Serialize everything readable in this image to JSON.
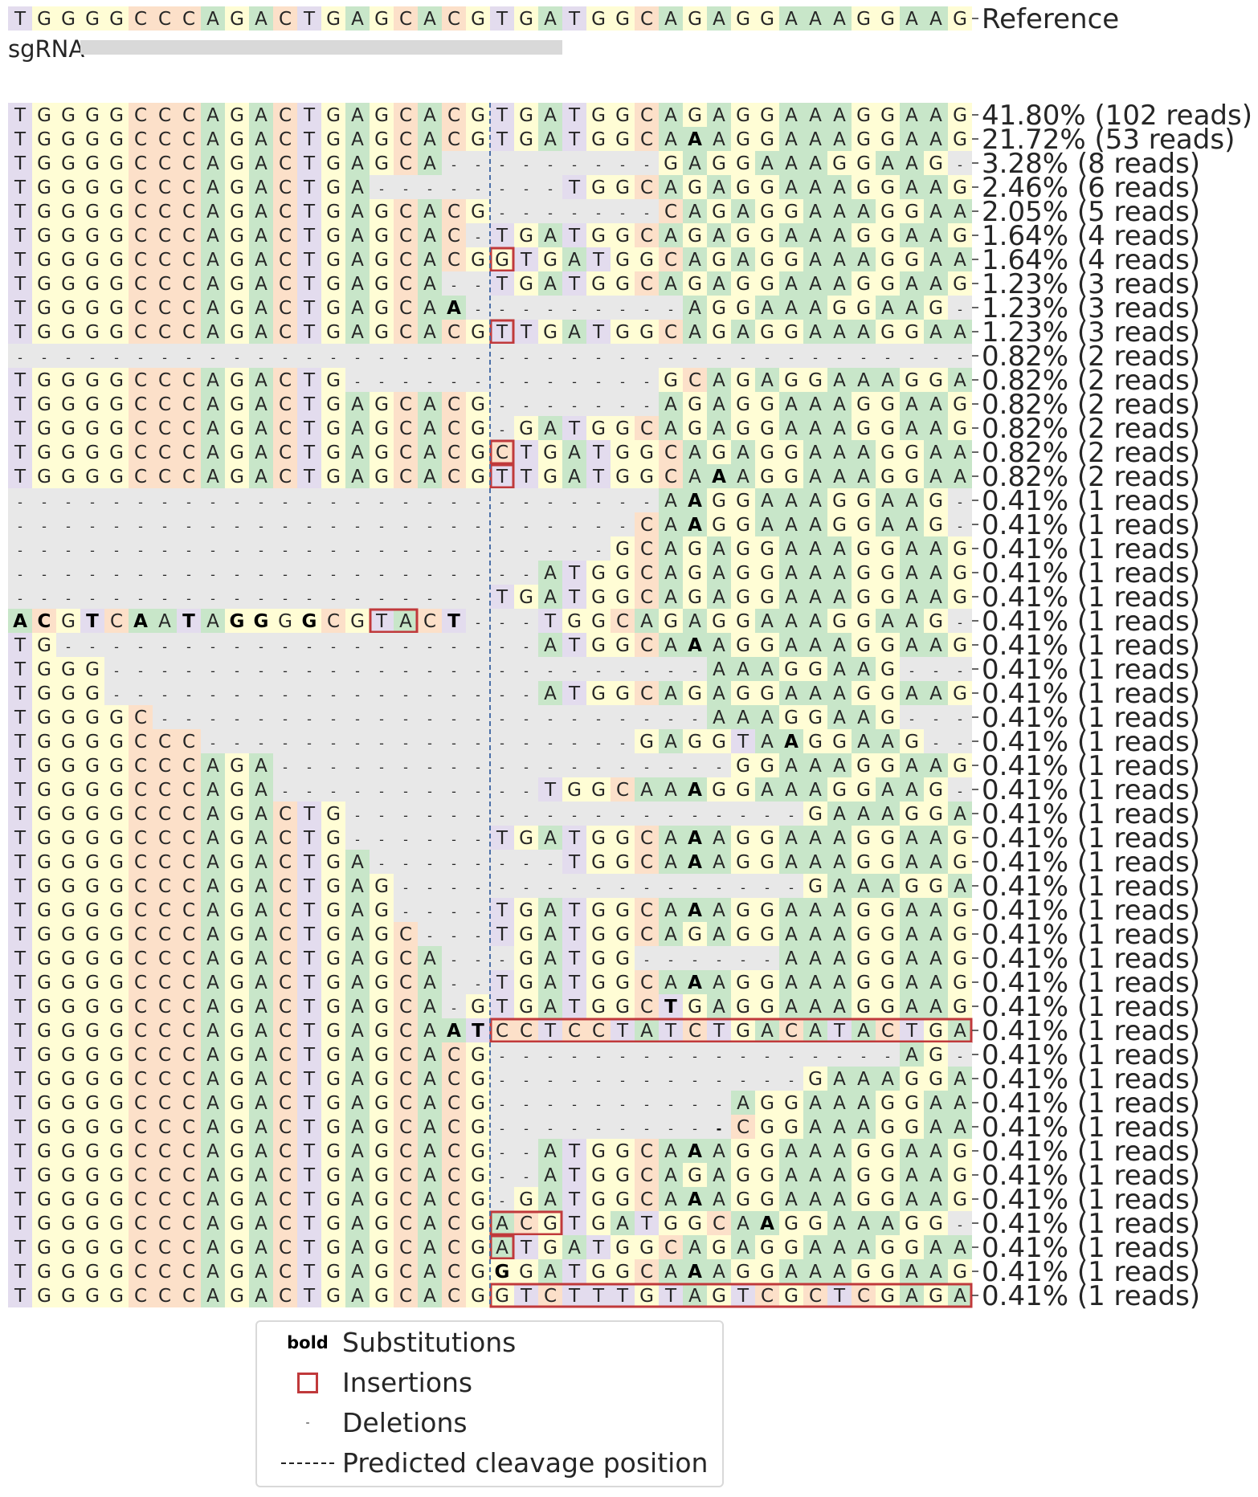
{
  "reference": {
    "sequence": "TGGGGCCCAGACTGAGCACGTGATGGCAGAGGAAAGGAAG",
    "label": "Reference"
  },
  "sgrna": {
    "label": "sgRNA",
    "start": 3,
    "end": 23
  },
  "cleavage_after_column": 20,
  "colors": {
    "A": "#c8e6c9",
    "C": "#fce0c9",
    "G": "#fffdd5",
    "T": "#e3dcee",
    "deletion": "#e8e8e8",
    "insertion_box": "#c0393b",
    "cut_line": "#4a6fa8",
    "text": "#262626",
    "sgrna_bar": "#d9d9d9"
  },
  "rows": [
    {
      "seq": "TGGGGCCCAGACTGAGCACGTGATGGCAGAGGAAAGGAAG",
      "sub": [],
      "ins": [],
      "label": "41.80% (102 reads)"
    },
    {
      "seq": "TGGGGCCCAGACTGAGCACGTGATGGCAAAGGAAAGGAAG",
      "sub": [
        28
      ],
      "ins": [],
      "label": "21.72% (53 reads)"
    },
    {
      "seq": "TGGGGCCCAGACTGAGCA---------GAGGAAAGGAAG",
      "sub": [],
      "ins": [],
      "label": "3.28% (8 reads)"
    },
    {
      "seq": "TGGGGCCCAGACTGA--------TGGCAGAGGAAAGGAAG",
      "sub": [],
      "ins": [],
      "label": "2.46% (6 reads)"
    },
    {
      "seq": "TGGGGCCCAGACTGAGCACG-------CAGAGGAAAGGAAG",
      "sub": [],
      "ins": [],
      "label": "2.05% (5 reads)"
    },
    {
      "seq": "TGGGGCCCAGACTGAGCAC-TGATGGCAGAGGAAAGGAAG",
      "sub": [],
      "ins": [],
      "label": "1.64% (4 reads)"
    },
    {
      "seq": "TGGGGCCCAGACTGAGCACGGTGATGGCAGAGGAAAGGAA",
      "sub": [],
      "ins": [
        [
          20,
          20
        ]
      ],
      "label": "1.64% (4 reads)"
    },
    {
      "seq": "TGGGGCCCAGACTGAGCA--TGATGGCAGAGGAAAGGAAG",
      "sub": [],
      "ins": [],
      "label": "1.23% (3 reads)"
    },
    {
      "seq": "TGGGGCCCAGACTGAGCAA---------AGGAAAGGAAG",
      "sub": [
        18
      ],
      "ins": [],
      "label": "1.23% (3 reads)"
    },
    {
      "seq": "TGGGGCCCAGACTGAGCACGTTGATGGCAGAGGAAAGGAA",
      "sub": [],
      "ins": [
        [
          20,
          20
        ]
      ],
      "label": "1.23% (3 reads)"
    },
    {
      "seq": "----------------------------------------",
      "sub": [],
      "ins": [],
      "label": "0.82% (2 reads)"
    },
    {
      "seq": "TGGGGCCCAGACTG-------------GCAGAGGAAAGGAAG",
      "sub": [],
      "ins": [],
      "label": "0.82% (2 reads)"
    },
    {
      "seq": "TGGGGCCCAGACTGAGCACG-------AGAGGAAAGGAAG",
      "sub": [],
      "ins": [],
      "label": "0.82% (2 reads)"
    },
    {
      "seq": "TGGGGCCCAGACTGAGCACG-GATGGCAGAGGAAAGGAAG",
      "sub": [],
      "ins": [],
      "label": "0.82% (2 reads)"
    },
    {
      "seq": "TGGGGCCCAGACTGAGCACGCTGATGGCAGAGGAAAGGAA",
      "sub": [],
      "ins": [
        [
          20,
          20
        ]
      ],
      "label": "0.82% (2 reads)"
    },
    {
      "seq": "TGGGGCCCAGACTGAGCACGTTGATGGCAAAGGAAAGGAA",
      "sub": [
        29
      ],
      "ins": [
        [
          20,
          20
        ]
      ],
      "label": "0.82% (2 reads)"
    },
    {
      "seq": "---------------------------AAGGAAAGGAAG",
      "sub": [
        28
      ],
      "ins": [],
      "label": "0.41% (1 reads)"
    },
    {
      "seq": "--------------------------CAAGGAAAGGAAG",
      "sub": [
        28
      ],
      "ins": [],
      "label": "0.41% (1 reads)"
    },
    {
      "seq": "-------------------------GCAGAGGAAAGGAAG",
      "sub": [],
      "ins": [],
      "label": "0.41% (1 reads)"
    },
    {
      "seq": "----------------------ATGGCAGAGGAAAGGAAG",
      "sub": [],
      "ins": [],
      "label": "0.41% (1 reads)"
    },
    {
      "seq": "--------------------TGATGGCAGAGGAAAGGAAG",
      "sub": [],
      "ins": [],
      "label": "0.41% (1 reads)"
    },
    {
      "seq": "ACGTCAATAGGGGCGTACT---TGGCAGAGGAAAGGAAG",
      "sub": [
        0,
        1,
        3,
        5,
        7,
        9,
        10,
        12,
        18
      ],
      "ins": [
        [
          15,
          16
        ]
      ],
      "label": "0.41% (1 reads)"
    },
    {
      "seq": "TG--------------------ATGGCAAAGGAAAGGAAG",
      "sub": [
        28
      ],
      "ins": [],
      "label": "0.41% (1 reads)"
    },
    {
      "seq": "TGGG-------------------------AAAGGAAG",
      "sub": [],
      "ins": [],
      "label": "0.41% (1 reads)"
    },
    {
      "seq": "TGGG------------------ATGGCAGAGGAAAGGAAG",
      "sub": [],
      "ins": [],
      "label": "0.41% (1 reads)"
    },
    {
      "seq": "TGGGGC-----------------------AAAGGAAG",
      "sub": [],
      "ins": [],
      "label": "0.41% (1 reads)"
    },
    {
      "seq": "TGGGGCCC------------------GAGGTAAGGAAG",
      "sub": [
        32
      ],
      "ins": [],
      "label": "0.41% (1 reads)"
    },
    {
      "seq": "TGGGGCCCAGA-------------------GGAAAGGAAG",
      "sub": [],
      "ins": [],
      "label": "0.41% (1 reads)"
    },
    {
      "seq": "TGGGGCCCAGA-----------TGGCAAAGGAAAGGAAG",
      "sub": [
        28
      ],
      "ins": [],
      "label": "0.41% (1 reads)"
    },
    {
      "seq": "TGGGGCCCAGACTG-------------------GAAAGGAAG",
      "sub": [],
      "ins": [],
      "label": "0.41% (1 reads)"
    },
    {
      "seq": "TGGGGCCCAGACTG------TGATGGCAAAGGAAAGGAAG",
      "sub": [
        28
      ],
      "ins": [],
      "label": "0.41% (1 reads)"
    },
    {
      "seq": "TGGGGCCCAGACTGA--------TGGCAAAGGAAAGGAAG",
      "sub": [
        28
      ],
      "ins": [],
      "label": "0.41% (1 reads)"
    },
    {
      "seq": "TGGGGCCCAGACTGAG-----------------GAAAGGAAG",
      "sub": [],
      "ins": [],
      "label": "0.41% (1 reads)"
    },
    {
      "seq": "TGGGGCCCAGACTGAG----TGATGGCAAAGGAAAGGAAG",
      "sub": [
        28
      ],
      "ins": [],
      "label": "0.41% (1 reads)"
    },
    {
      "seq": "TGGGGCCCAGACTGAGC---TGATGGCAGAGGAAAGGAAG",
      "sub": [],
      "ins": [],
      "label": "0.41% (1 reads)"
    },
    {
      "seq": "TGGGGCCCAGACTGAGCA---GATGG------AAAGGAAG",
      "sub": [],
      "ins": [],
      "label": "0.41% (1 reads)"
    },
    {
      "seq": "TGGGGCCCAGACTGAGCA--TGATGGCAAAGGAAAGGAAG",
      "sub": [
        28
      ],
      "ins": [],
      "label": "0.41% (1 reads)"
    },
    {
      "seq": "TGGGGCCCAGACTGAGCA-GTGATGGCTGAGGAAAGGAAG",
      "sub": [
        27
      ],
      "ins": [],
      "label": "0.41% (1 reads)"
    },
    {
      "seq": "TGGGGCCCAGACTGAGCAATCCTCCTATCTGACATACTGA",
      "sub": [
        18,
        19
      ],
      "ins": [
        [
          20,
          39
        ]
      ],
      "label": "0.41% (1 reads)"
    },
    {
      "seq": "TGGGGCCCAGACTGAGCACG-----------------AG",
      "sub": [],
      "ins": [],
      "label": "0.41% (1 reads)"
    },
    {
      "seq": "TGGGGCCCAGACTGAGCACG-------------GAAAGGAAG",
      "sub": [],
      "ins": [],
      "label": "0.41% (1 reads)"
    },
    {
      "seq": "TGGGGCCCAGACTGAGCACG----------AGGAAAGGAAG",
      "sub": [],
      "ins": [],
      "label": "0.41% (1 reads)"
    },
    {
      "seq": "TGGGGCCCAGACTGAGCACG----------CGGAAAGGAAG",
      "sub": [
        29
      ],
      "ins": [],
      "label": "0.41% (1 reads)"
    },
    {
      "seq": "TGGGGCCCAGACTGAGCACG--ATGGCAAAGGAAAGGAAG",
      "sub": [
        28
      ],
      "ins": [],
      "label": "0.41% (1 reads)"
    },
    {
      "seq": "TGGGGCCCAGACTGAGCACG--ATGGCAGAGGAAAGGAAG",
      "sub": [],
      "ins": [],
      "label": "0.41% (1 reads)"
    },
    {
      "seq": "TGGGGCCCAGACTGAGCACG-GATGGCAAAGGAAAGGAAG",
      "sub": [
        28
      ],
      "ins": [],
      "label": "0.41% (1 reads)"
    },
    {
      "seq": "TGGGGCCCAGACTGAGCACGACGTGATGGCAAGGAAAGG",
      "sub": [
        31
      ],
      "ins": [
        [
          20,
          22
        ]
      ],
      "label": "0.41% (1 reads)"
    },
    {
      "seq": "TGGGGCCCAGACTGAGCACGATGATGGCAGAGGAAAGGAA",
      "sub": [],
      "ins": [
        [
          20,
          20
        ]
      ],
      "label": "0.41% (1 reads)"
    },
    {
      "seq": "TGGGGCCCAGACTGAGCACGGGATGGCAAAGGAAAGGAAG",
      "sub": [
        20,
        28
      ],
      "ins": [],
      "label": "0.41% (1 reads)"
    },
    {
      "seq": "TGGGGCCCAGACTGAGCACGGTCTTTGTAGTCGCTCGAGA",
      "sub": [],
      "ins": [
        [
          20,
          39
        ]
      ],
      "label": "0.41% (1 reads)"
    }
  ],
  "legend": [
    {
      "key": "bold",
      "label": "Substitutions"
    },
    {
      "key": "box",
      "label": "Insertions"
    },
    {
      "key": "-",
      "label": "Deletions"
    },
    {
      "key": "dashed",
      "label": "Predicted cleavage position"
    }
  ]
}
